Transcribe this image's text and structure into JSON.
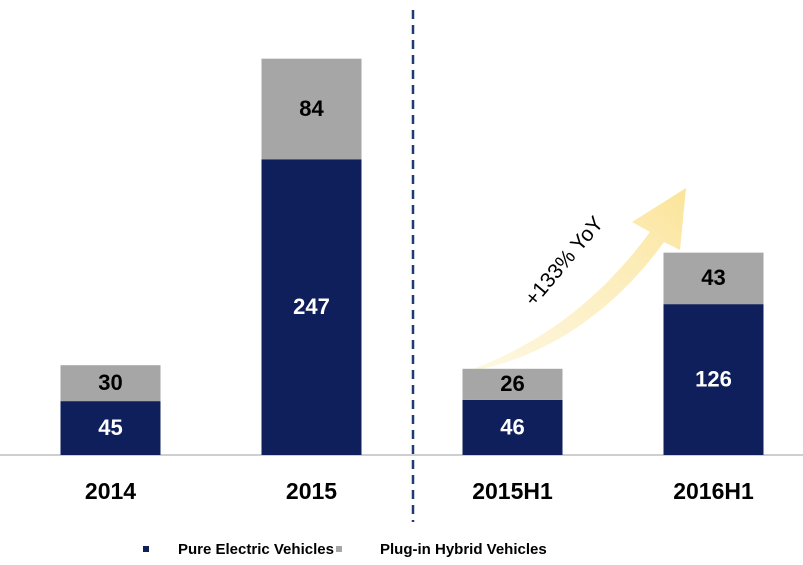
{
  "chart_data": {
    "type": "stacked_bar",
    "categories": [
      "2014",
      "2015",
      "2015H1",
      "2016H1"
    ],
    "series": [
      {
        "name": "Pure Electric Vehicles",
        "color": "#0e1f5b",
        "values": [
          45,
          247,
          46,
          126
        ]
      },
      {
        "name": "Plug-in Hybrid Vehicles",
        "color": "#a6a6a6",
        "values": [
          30,
          84,
          26,
          43
        ]
      }
    ],
    "ylim": [
      0,
      380
    ],
    "annotation": "+133% YoY"
  }
}
